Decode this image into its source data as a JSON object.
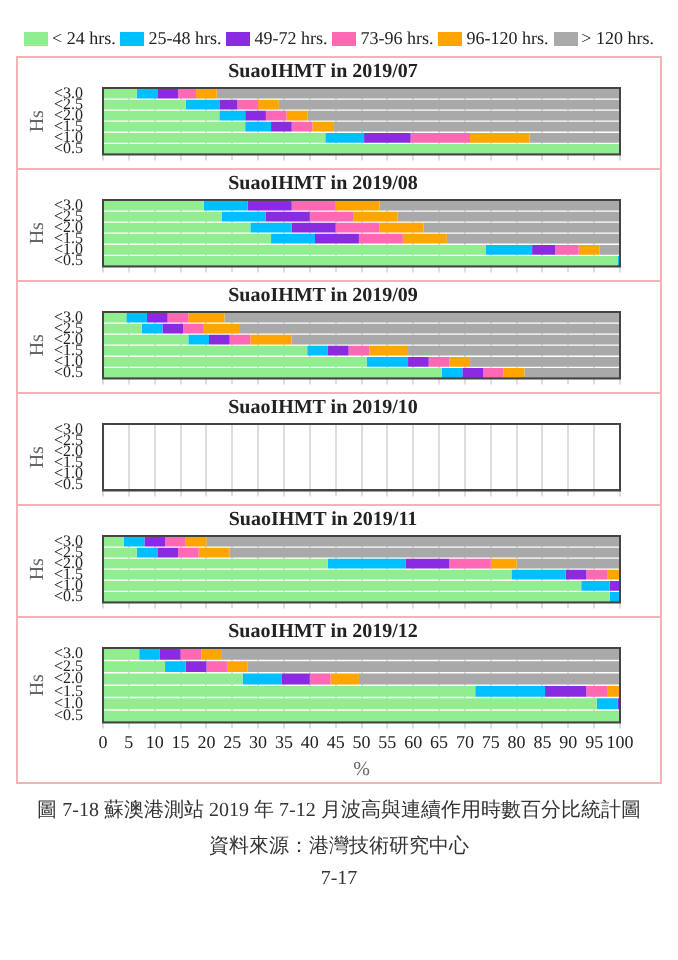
{
  "chart_data": [
    {
      "type": "bar",
      "orientation": "horizontal",
      "stacked": true,
      "title": "SuaoIHMT in 2019/07",
      "ylabel": "Hs",
      "categories": [
        "<3.0",
        "<2.5",
        "<2.0",
        "<1.5",
        "<1.0",
        "<0.5"
      ],
      "xlim": [
        0,
        100
      ],
      "xticks": [
        0,
        5,
        10,
        15,
        20,
        25,
        30,
        35,
        40,
        45,
        50,
        55,
        60,
        65,
        70,
        75,
        80,
        85,
        90,
        95,
        100
      ],
      "grid": "x",
      "tick_labels": "y",
      "legend": "top",
      "series": [
        {
          "name": "< 24 hrs.",
          "color": "#90ee90",
          "values": [
            6.5,
            16,
            22.5,
            27.5,
            43,
            100
          ]
        },
        {
          "name": "25-48 hrs.",
          "color": "#00bfff",
          "values": [
            4,
            6.5,
            5,
            5,
            7.5,
            0
          ]
        },
        {
          "name": "49-72 hrs.",
          "color": "#8a2be2",
          "values": [
            4,
            3.5,
            4,
            4,
            9,
            0
          ]
        },
        {
          "name": "73-96 hrs.",
          "color": "#ff69b4",
          "values": [
            3.5,
            4,
            4,
            4,
            11.5,
            0
          ]
        },
        {
          "name": "96-120 hrs.",
          "color": "#ffa500",
          "values": [
            4,
            4,
            4,
            4,
            11.5,
            0
          ]
        },
        {
          "name": "> 120 hrs.",
          "color": "#a9a9a9",
          "values": [
            78,
            66,
            60.5,
            55.5,
            17.5,
            0
          ]
        }
      ]
    },
    {
      "type": "bar",
      "orientation": "horizontal",
      "stacked": true,
      "title": "SuaoIHMT in 2019/08",
      "ylabel": "Hs",
      "categories": [
        "<3.0",
        "<2.5",
        "<2.0",
        "<1.5",
        "<1.0",
        "<0.5"
      ],
      "xlim": [
        0,
        100
      ],
      "xticks": [
        0,
        5,
        10,
        15,
        20,
        25,
        30,
        35,
        40,
        45,
        50,
        55,
        60,
        65,
        70,
        75,
        80,
        85,
        90,
        95,
        100
      ],
      "grid": "x",
      "tick_labels": "y",
      "series": [
        {
          "color": "#90ee90",
          "values": [
            19.5,
            23,
            28.5,
            32.5,
            74,
            99.5
          ]
        },
        {
          "color": "#00bfff",
          "values": [
            8.5,
            8.5,
            8,
            8.5,
            9,
            0.5
          ]
        },
        {
          "color": "#8a2be2",
          "values": [
            8.5,
            8.5,
            8.5,
            8.5,
            4.5,
            0
          ]
        },
        {
          "color": "#ff69b4",
          "values": [
            8.5,
            8.5,
            8.5,
            8.5,
            4.5,
            0
          ]
        },
        {
          "color": "#ffa500",
          "values": [
            8.5,
            8.5,
            8.5,
            8.5,
            4,
            0
          ]
        },
        {
          "color": "#a9a9a9",
          "values": [
            46.5,
            43,
            38,
            33.5,
            4,
            0
          ]
        }
      ]
    },
    {
      "type": "bar",
      "orientation": "horizontal",
      "stacked": true,
      "title": "SuaoIHMT in 2019/09",
      "ylabel": "Hs",
      "categories": [
        "<3.0",
        "<2.5",
        "<2.0",
        "<1.5",
        "<1.0",
        "<0.5"
      ],
      "xlim": [
        0,
        100
      ],
      "xticks": [
        0,
        5,
        10,
        15,
        20,
        25,
        30,
        35,
        40,
        45,
        50,
        55,
        60,
        65,
        70,
        75,
        80,
        85,
        90,
        95,
        100
      ],
      "grid": "x",
      "tick_labels": "y",
      "series": [
        {
          "color": "#90ee90",
          "values": [
            4.5,
            7.5,
            16.5,
            39.5,
            51,
            65.5
          ]
        },
        {
          "color": "#00bfff",
          "values": [
            4,
            4,
            4,
            4,
            8,
            4
          ]
        },
        {
          "color": "#8a2be2",
          "values": [
            4,
            4,
            4,
            4,
            4,
            4
          ]
        },
        {
          "color": "#ff69b4",
          "values": [
            4,
            4,
            4,
            4,
            4,
            4
          ]
        },
        {
          "color": "#ffa500",
          "values": [
            7,
            7,
            8,
            7.5,
            4,
            4
          ]
        },
        {
          "color": "#a9a9a9",
          "values": [
            76.5,
            73.5,
            63.5,
            41,
            29,
            18.5
          ]
        }
      ]
    },
    {
      "type": "bar",
      "orientation": "horizontal",
      "stacked": true,
      "title": "SuaoIHMT in 2019/10",
      "ylabel": "Hs",
      "categories": [
        "<3.0",
        "<2.5",
        "<2.0",
        "<1.5",
        "<1.0",
        "<0.5"
      ],
      "xlim": [
        0,
        100
      ],
      "xticks": [
        0,
        5,
        10,
        15,
        20,
        25,
        30,
        35,
        40,
        45,
        50,
        55,
        60,
        65,
        70,
        75,
        80,
        85,
        90,
        95,
        100
      ],
      "grid": "x",
      "tick_labels": "y",
      "series": [
        {
          "color": "#90ee90",
          "values": [
            null,
            null,
            null,
            null,
            null,
            null
          ]
        },
        {
          "color": "#00bfff",
          "values": [
            null,
            null,
            null,
            null,
            null,
            null
          ]
        },
        {
          "color": "#8a2be2",
          "values": [
            null,
            null,
            null,
            null,
            null,
            null
          ]
        },
        {
          "color": "#ff69b4",
          "values": [
            null,
            null,
            null,
            null,
            null,
            null
          ]
        },
        {
          "color": "#ffa500",
          "values": [
            null,
            null,
            null,
            null,
            null,
            null
          ]
        },
        {
          "color": "#a9a9a9",
          "values": [
            null,
            null,
            null,
            null,
            null,
            null
          ]
        }
      ]
    },
    {
      "type": "bar",
      "orientation": "horizontal",
      "stacked": true,
      "title": "SuaoIHMT in 2019/11",
      "ylabel": "Hs",
      "categories": [
        "<3.0",
        "<2.5",
        "<2.0",
        "<1.5",
        "<1.0",
        "<0.5"
      ],
      "xlim": [
        0,
        100
      ],
      "xticks": [
        0,
        5,
        10,
        15,
        20,
        25,
        30,
        35,
        40,
        45,
        50,
        55,
        60,
        65,
        70,
        75,
        80,
        85,
        90,
        95,
        100
      ],
      "grid": "x",
      "tick_labels": "y",
      "series": [
        {
          "color": "#90ee90",
          "values": [
            4,
            6.5,
            43.5,
            79,
            92.5,
            98
          ]
        },
        {
          "color": "#00bfff",
          "values": [
            4,
            4,
            15,
            10.5,
            5.5,
            2
          ]
        },
        {
          "color": "#8a2be2",
          "values": [
            4,
            4,
            8.5,
            4,
            2,
            0
          ]
        },
        {
          "color": "#ff69b4",
          "values": [
            4,
            4,
            8,
            4,
            0,
            0
          ]
        },
        {
          "color": "#ffa500",
          "values": [
            4,
            6,
            5,
            2.5,
            0,
            0
          ]
        },
        {
          "color": "#a9a9a9",
          "values": [
            80,
            75.5,
            20,
            0,
            0,
            0
          ]
        }
      ]
    },
    {
      "type": "bar",
      "orientation": "horizontal",
      "stacked": true,
      "title": "SuaoIHMT in 2019/12",
      "ylabel": "Hs",
      "xlabel": "%",
      "categories": [
        "<3.0",
        "<2.5",
        "<2.0",
        "<1.5",
        "<1.0",
        "<0.5"
      ],
      "xlim": [
        0,
        100
      ],
      "xticks": [
        0,
        5,
        10,
        15,
        20,
        25,
        30,
        35,
        40,
        45,
        50,
        55,
        60,
        65,
        70,
        75,
        80,
        85,
        90,
        95,
        100
      ],
      "grid": "x",
      "annotations": [
        "圖 7-18 蘇澳港測站 2019 年 7-12 月波高與連續作用時數百分比統計圖",
        "資料來源：港灣技術研究中心",
        "7-17"
      ],
      "series": [
        {
          "color": "#90ee90",
          "values": [
            7,
            12,
            27,
            72,
            95.5,
            100
          ]
        },
        {
          "color": "#00bfff",
          "values": [
            4,
            4,
            7.5,
            13.5,
            4,
            0
          ]
        },
        {
          "color": "#8a2be2",
          "values": [
            4,
            4,
            5.5,
            8,
            0.5,
            0
          ]
        },
        {
          "color": "#ff69b4",
          "values": [
            4,
            4,
            4,
            4,
            0,
            0
          ]
        },
        {
          "color": "#ffa500",
          "values": [
            4,
            4,
            5.5,
            2.5,
            0,
            0
          ]
        },
        {
          "color": "#a9a9a9",
          "values": [
            77,
            72,
            50.5,
            0,
            0,
            0
          ]
        }
      ]
    }
  ]
}
